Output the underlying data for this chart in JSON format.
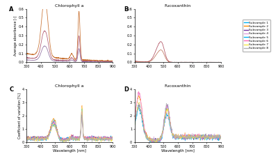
{
  "title_A": "Chlorophyll a",
  "title_B": "Fucoxanthin",
  "title_C": "Chlorophyll a",
  "title_D": "Fucoxanthin",
  "ylabel_AB": "Average absorbance [-]",
  "ylabel_CD": "Coefficient of variation [%]",
  "xlabel": "Wavelength [nm]",
  "xlim": [
    300,
    900
  ],
  "ylim_A": [
    0,
    0.6
  ],
  "ylim_B": [
    0,
    0.6
  ],
  "ylim_C": [
    0,
    4
  ],
  "ylim_D": [
    0,
    4
  ],
  "wavelength_min": 300,
  "wavelength_max": 900,
  "n_points": 601,
  "subsample_colors": [
    "#00b0f0",
    "#ff8c00",
    "#7030a0",
    "#dda0dd",
    "#00b0f0",
    "#ff69b4",
    "#f5e642",
    "#b0b0b0"
  ],
  "subsample_labels": [
    "Subsample 1",
    "Subsample 2",
    "Subsample 3",
    "Subsample 4",
    "Subsample 5",
    "Subsample 6",
    "Subsample 7",
    "Subsample 8"
  ],
  "chl_colors_AB": [
    "#c87030",
    "#b05870",
    "#9070a0"
  ],
  "fuco_colors_AB": [
    "#b05060",
    "#c07860"
  ],
  "background_color": "#ffffff",
  "panel_labels": [
    "A",
    "B",
    "C",
    "D"
  ]
}
